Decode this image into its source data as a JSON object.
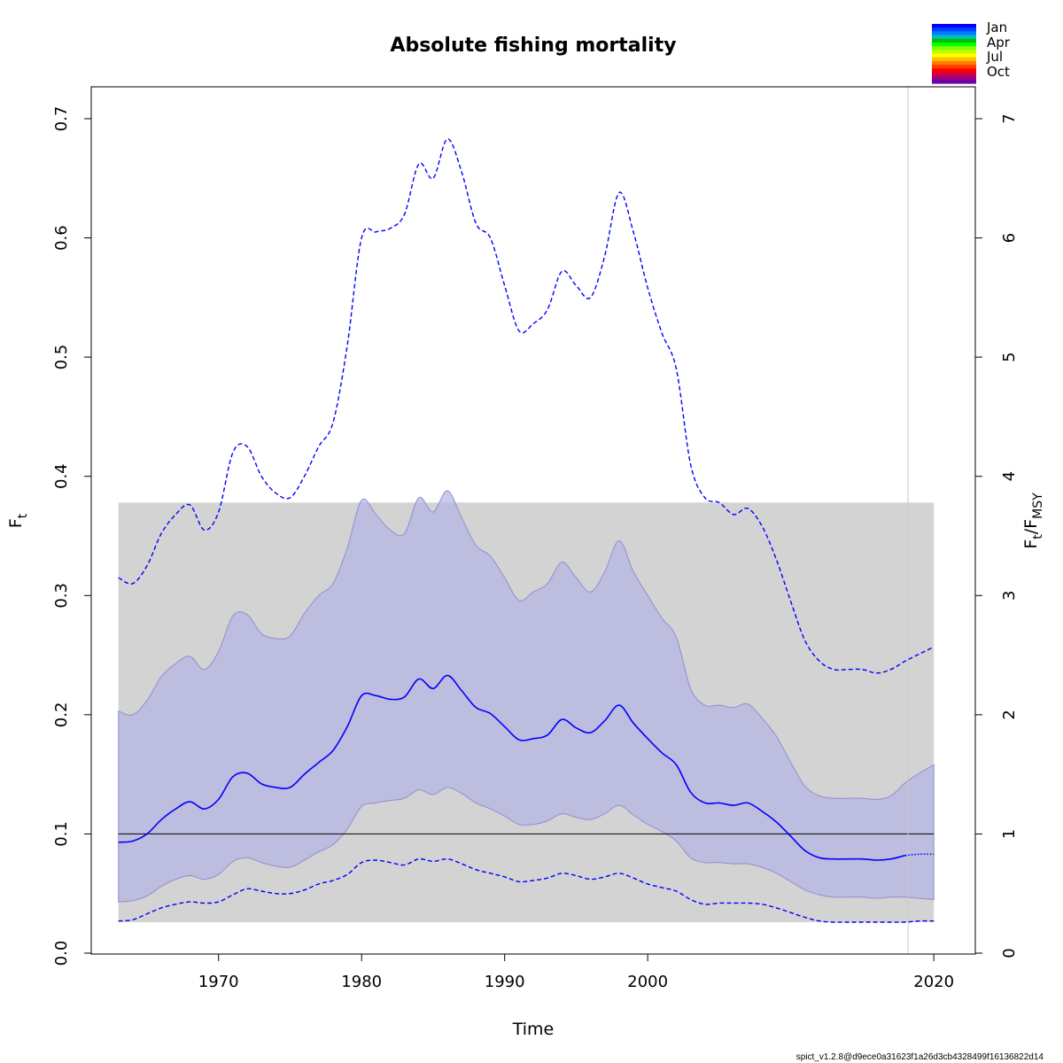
{
  "chart_data": {
    "type": "line",
    "title": "Absolute fishing mortality",
    "xlabel": "Time",
    "ylabel": "F",
    "ylabel_sub": "t",
    "y2label_main_1": "F",
    "y2label_sub_1": "t",
    "y2label_slash": "/",
    "y2label_main_2": "F",
    "y2label_sub_2": "MSY",
    "xlim": [
      1961.1,
      2022.9
    ],
    "ylim": [
      0,
      0.7
    ],
    "x_ticks": [
      1970,
      1980,
      1990,
      2000,
      2020
    ],
    "y_ticks": [
      0.0,
      0.1,
      0.2,
      0.3,
      0.4,
      0.5,
      0.6,
      0.7
    ],
    "y_tick_labels": [
      "0.0",
      "0.1",
      "0.2",
      "0.3",
      "0.4",
      "0.5",
      "0.6",
      "0.7"
    ],
    "y2_ticks": [
      0,
      1,
      2,
      3,
      4,
      5,
      6,
      7
    ],
    "fmsy": 0.1,
    "fmsy_ci": [
      0.026,
      0.378
    ],
    "ci_x_range": [
      1963,
      2020
    ],
    "last_data_year": 2018.2,
    "forecast_start": 2018.8,
    "colors": {
      "estimate": "#0000ff",
      "ci_fill": "#b3b3e6",
      "fmsy_band": "#d3d3d3",
      "fmsy_line": "#000000",
      "vline": "#c8c8c8"
    },
    "series": [
      {
        "role": "estimate",
        "x": [
          1963,
          1964,
          1965,
          1966,
          1967,
          1968,
          1969,
          1970,
          1971,
          1972,
          1973,
          1974,
          1975,
          1976,
          1977,
          1978,
          1979,
          1980,
          1981,
          1982,
          1983,
          1984,
          1985,
          1986,
          1987,
          1988,
          1989,
          1990,
          1991,
          1992,
          1993,
          1994,
          1995,
          1996,
          1997,
          1998,
          1999,
          2000,
          2001,
          2002,
          2003,
          2004,
          2005,
          2006,
          2007,
          2008,
          2009,
          2010,
          2011,
          2012,
          2013,
          2014,
          2015,
          2016,
          2017,
          2018,
          2019,
          2020
        ],
        "values": [
          0.093,
          0.094,
          0.1,
          0.112,
          0.121,
          0.127,
          0.121,
          0.129,
          0.148,
          0.151,
          0.142,
          0.139,
          0.139,
          0.15,
          0.16,
          0.17,
          0.19,
          0.216,
          0.216,
          0.213,
          0.215,
          0.23,
          0.222,
          0.233,
          0.22,
          0.206,
          0.201,
          0.19,
          0.179,
          0.18,
          0.183,
          0.196,
          0.189,
          0.185,
          0.195,
          0.208,
          0.193,
          0.18,
          0.168,
          0.158,
          0.135,
          0.126,
          0.126,
          0.124,
          0.126,
          0.119,
          0.11,
          0.098,
          0.086,
          0.08,
          0.079,
          0.079,
          0.079,
          0.078,
          0.079,
          0.082,
          0.083,
          0.083
        ]
      },
      {
        "role": "upper_ci",
        "x": [
          1963,
          1964,
          1965,
          1966,
          1967,
          1968,
          1969,
          1970,
          1971,
          1972,
          1973,
          1974,
          1975,
          1976,
          1977,
          1978,
          1979,
          1980,
          1981,
          1982,
          1983,
          1984,
          1985,
          1986,
          1987,
          1988,
          1989,
          1990,
          1991,
          1992,
          1993,
          1994,
          1995,
          1996,
          1997,
          1998,
          1999,
          2000,
          2001,
          2002,
          2003,
          2004,
          2005,
          2006,
          2007,
          2008,
          2009,
          2010,
          2011,
          2012,
          2013,
          2014,
          2015,
          2016,
          2017,
          2018,
          2019,
          2020
        ],
        "values": [
          0.315,
          0.31,
          0.325,
          0.352,
          0.368,
          0.376,
          0.355,
          0.37,
          0.42,
          0.425,
          0.4,
          0.386,
          0.382,
          0.4,
          0.425,
          0.445,
          0.51,
          0.6,
          0.605,
          0.608,
          0.62,
          0.662,
          0.65,
          0.683,
          0.655,
          0.612,
          0.6,
          0.56,
          0.522,
          0.528,
          0.54,
          0.572,
          0.56,
          0.55,
          0.585,
          0.638,
          0.605,
          0.558,
          0.52,
          0.49,
          0.41,
          0.382,
          0.378,
          0.368,
          0.373,
          0.358,
          0.33,
          0.295,
          0.262,
          0.245,
          0.238,
          0.238,
          0.238,
          0.235,
          0.238,
          0.245,
          0.251,
          0.257
        ]
      },
      {
        "role": "lower_ci",
        "x": [
          1963,
          1964,
          1965,
          1966,
          1967,
          1968,
          1969,
          1970,
          1971,
          1972,
          1973,
          1974,
          1975,
          1976,
          1977,
          1978,
          1979,
          1980,
          1981,
          1982,
          1983,
          1984,
          1985,
          1986,
          1987,
          1988,
          1989,
          1990,
          1991,
          1992,
          1993,
          1994,
          1995,
          1996,
          1997,
          1998,
          1999,
          2000,
          2001,
          2002,
          2003,
          2004,
          2005,
          2006,
          2007,
          2008,
          2009,
          2010,
          2011,
          2012,
          2013,
          2014,
          2015,
          2016,
          2017,
          2018,
          2019,
          2020
        ],
        "values": [
          0.027,
          0.028,
          0.033,
          0.038,
          0.041,
          0.043,
          0.042,
          0.043,
          0.049,
          0.054,
          0.052,
          0.05,
          0.05,
          0.053,
          0.058,
          0.061,
          0.066,
          0.076,
          0.078,
          0.076,
          0.074,
          0.079,
          0.077,
          0.079,
          0.075,
          0.07,
          0.067,
          0.064,
          0.06,
          0.061,
          0.063,
          0.067,
          0.065,
          0.062,
          0.064,
          0.067,
          0.063,
          0.058,
          0.055,
          0.052,
          0.045,
          0.041,
          0.042,
          0.042,
          0.042,
          0.041,
          0.038,
          0.034,
          0.03,
          0.027,
          0.026,
          0.026,
          0.026,
          0.026,
          0.026,
          0.026,
          0.027,
          0.027
        ]
      },
      {
        "role": "ci_band_upper",
        "x": [
          1963,
          1964,
          1965,
          1966,
          1967,
          1968,
          1969,
          1970,
          1971,
          1972,
          1973,
          1974,
          1975,
          1976,
          1977,
          1978,
          1979,
          1980,
          1981,
          1982,
          1983,
          1984,
          1985,
          1986,
          1987,
          1988,
          1989,
          1990,
          1991,
          1992,
          1993,
          1994,
          1995,
          1996,
          1997,
          1998,
          1999,
          2000,
          2001,
          2002,
          2003,
          2004,
          2005,
          2006,
          2007,
          2008,
          2009,
          2010,
          2011,
          2012,
          2013,
          2014,
          2015,
          2016,
          2017,
          2018,
          2019,
          2020
        ],
        "values": [
          0.203,
          0.2,
          0.212,
          0.232,
          0.243,
          0.249,
          0.238,
          0.253,
          0.283,
          0.284,
          0.268,
          0.264,
          0.266,
          0.285,
          0.3,
          0.31,
          0.34,
          0.38,
          0.368,
          0.355,
          0.352,
          0.382,
          0.37,
          0.388,
          0.365,
          0.342,
          0.333,
          0.315,
          0.296,
          0.303,
          0.31,
          0.328,
          0.315,
          0.303,
          0.32,
          0.346,
          0.32,
          0.3,
          0.281,
          0.265,
          0.222,
          0.208,
          0.208,
          0.206,
          0.209,
          0.197,
          0.182,
          0.16,
          0.14,
          0.132,
          0.13,
          0.13,
          0.13,
          0.129,
          0.132,
          0.143,
          0.151,
          0.158
        ]
      },
      {
        "role": "ci_band_lower",
        "x": [
          1963,
          1964,
          1965,
          1966,
          1967,
          1968,
          1969,
          1970,
          1971,
          1972,
          1973,
          1974,
          1975,
          1976,
          1977,
          1978,
          1979,
          1980,
          1981,
          1982,
          1983,
          1984,
          1985,
          1986,
          1987,
          1988,
          1989,
          1990,
          1991,
          1992,
          1993,
          1994,
          1995,
          1996,
          1997,
          1998,
          1999,
          2000,
          2001,
          2002,
          2003,
          2004,
          2005,
          2006,
          2007,
          2008,
          2009,
          2010,
          2011,
          2012,
          2013,
          2014,
          2015,
          2016,
          2017,
          2018,
          2019,
          2020
        ],
        "values": [
          0.043,
          0.044,
          0.048,
          0.056,
          0.062,
          0.065,
          0.062,
          0.066,
          0.077,
          0.08,
          0.076,
          0.073,
          0.072,
          0.078,
          0.085,
          0.091,
          0.104,
          0.123,
          0.126,
          0.128,
          0.13,
          0.137,
          0.133,
          0.139,
          0.134,
          0.126,
          0.121,
          0.115,
          0.108,
          0.108,
          0.111,
          0.117,
          0.114,
          0.112,
          0.117,
          0.124,
          0.116,
          0.108,
          0.102,
          0.094,
          0.08,
          0.076,
          0.076,
          0.075,
          0.075,
          0.072,
          0.067,
          0.06,
          0.053,
          0.049,
          0.047,
          0.047,
          0.047,
          0.046,
          0.047,
          0.047,
          0.046,
          0.045
        ]
      }
    ]
  },
  "legend": {
    "labels": [
      "Jan",
      "Apr",
      "Jul",
      "Oct"
    ],
    "colors": [
      "#0000ff",
      "#0040ff",
      "#0080ff",
      "#00bfbf",
      "#00c000",
      "#00ff00",
      "#80ff00",
      "#c0ff00",
      "#ffff00",
      "#ffc000",
      "#ff8000",
      "#ff4000",
      "#ff0000",
      "#d00040",
      "#a00080",
      "#6a00a8"
    ]
  },
  "footer": "spict_v1.2.8@d9ece0a31623f1a26d3cb4328499f16136822d14"
}
